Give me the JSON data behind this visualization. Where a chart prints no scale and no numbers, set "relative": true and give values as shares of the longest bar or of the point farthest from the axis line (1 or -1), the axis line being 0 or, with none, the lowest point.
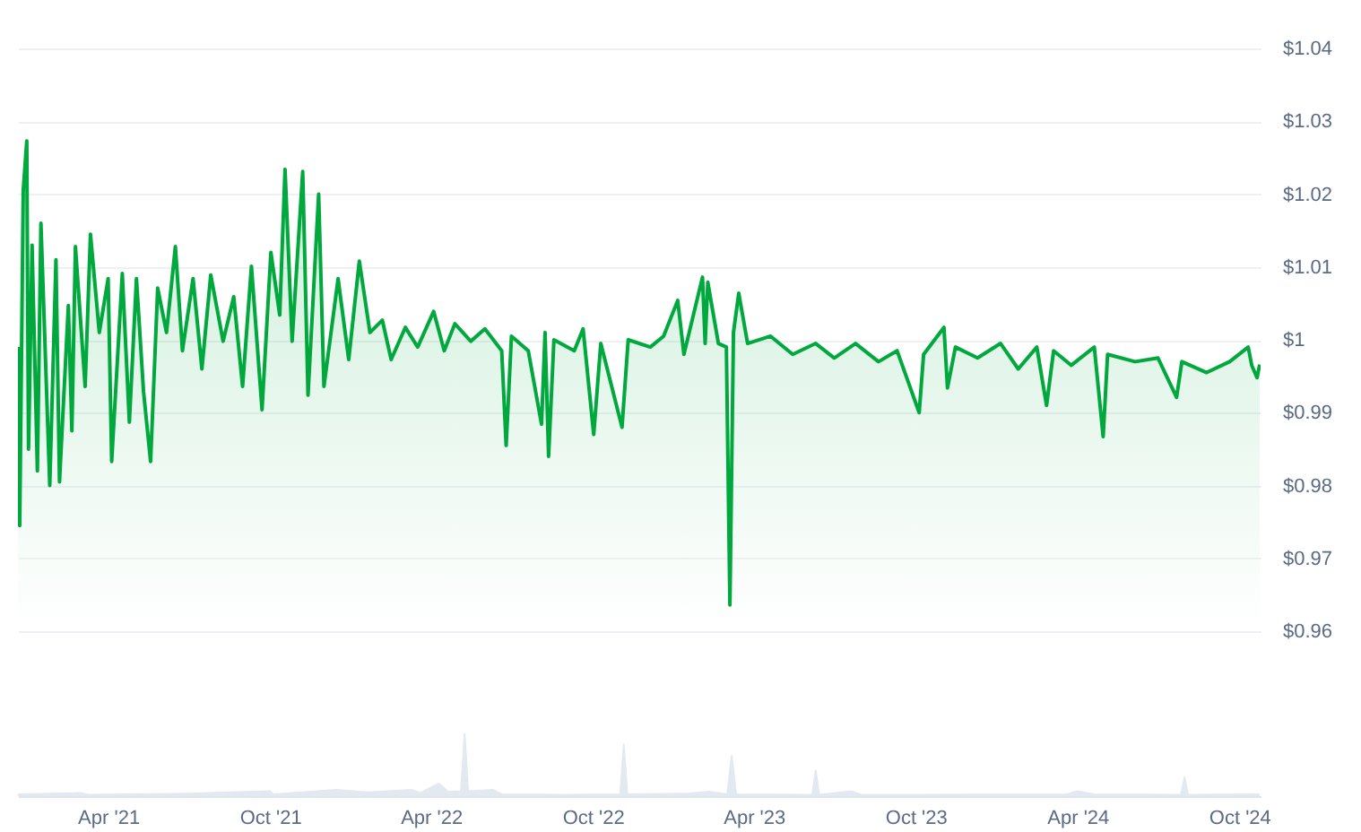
{
  "chart_data": [
    {
      "type": "area",
      "xlim": [
        "2020-12-20",
        "2024-10-25"
      ],
      "ylim": [
        0.96,
        1.04
      ],
      "yticks": [
        {
          "value": 0.96,
          "label": "$0.96"
        },
        {
          "value": 0.97,
          "label": "$0.97"
        },
        {
          "value": 0.98,
          "label": "$0.98"
        },
        {
          "value": 0.99,
          "label": "$0.99"
        },
        {
          "value": 1,
          "label": "$1"
        },
        {
          "value": 1.01,
          "label": "$1.01"
        },
        {
          "value": 1.02,
          "label": "$1.02"
        },
        {
          "value": 1.03,
          "label": "$1.03"
        },
        {
          "value": 1.04,
          "label": "$1.04"
        }
      ],
      "grid": "y",
      "tick_labels": "y",
      "x": [
        "2020-12-20",
        "2020-12-22",
        "2020-12-26",
        "2020-12-30",
        "2021-01-01",
        "2021-01-05",
        "2021-01-11",
        "2021-01-15",
        "2021-01-25",
        "2021-02-01",
        "2021-02-05",
        "2021-02-15",
        "2021-02-19",
        "2021-02-23",
        "2021-03-06",
        "2021-03-12",
        "2021-03-22",
        "2021-04-01",
        "2021-04-05",
        "2021-04-17",
        "2021-04-25",
        "2021-05-03",
        "2021-05-11",
        "2021-05-19",
        "2021-05-27",
        "2021-06-06",
        "2021-06-16",
        "2021-06-24",
        "2021-07-06",
        "2021-07-16",
        "2021-07-26",
        "2021-08-09",
        "2021-08-21",
        "2021-08-31",
        "2021-09-10",
        "2021-09-22",
        "2021-10-02",
        "2021-10-12",
        "2021-10-18",
        "2021-10-26",
        "2021-11-07",
        "2021-11-13",
        "2021-11-25",
        "2021-12-01",
        "2021-12-17",
        "2021-12-29",
        "2022-01-10",
        "2022-01-22",
        "2022-02-05",
        "2022-02-15",
        "2022-03-03",
        "2022-03-17",
        "2022-04-04",
        "2022-04-16",
        "2022-04-28",
        "2022-05-16",
        "2022-06-01",
        "2022-06-20",
        "2022-06-25",
        "2022-07-01",
        "2022-07-20",
        "2022-08-04",
        "2022-08-08",
        "2022-08-12",
        "2022-08-18",
        "2022-09-10",
        "2022-09-20",
        "2022-10-02",
        "2022-10-10",
        "2022-11-03",
        "2022-11-10",
        "2022-12-05",
        "2022-12-20",
        "2023-01-05",
        "2023-01-12",
        "2023-02-02",
        "2023-02-05",
        "2023-02-08",
        "2023-02-20",
        "2023-03-01",
        "2023-03-05",
        "2023-03-09",
        "2023-03-15",
        "2023-03-25",
        "2023-04-20",
        "2023-05-15",
        "2023-06-10",
        "2023-07-01",
        "2023-07-25",
        "2023-08-20",
        "2023-09-10",
        "2023-10-05",
        "2023-10-10",
        "2023-11-02",
        "2023-11-06",
        "2023-11-15",
        "2023-12-10",
        "2024-01-05",
        "2024-01-25",
        "2024-02-15",
        "2024-02-26",
        "2024-03-05",
        "2024-03-25",
        "2024-04-20",
        "2024-04-30",
        "2024-05-05",
        "2024-06-05",
        "2024-07-01",
        "2024-07-22",
        "2024-07-28",
        "2024-08-25",
        "2024-09-20",
        "2024-10-11",
        "2024-10-15",
        "2024-10-21",
        "2024-10-24"
      ],
      "series": [
        {
          "color": "#00a83e",
          "values": [
            0.999,
            0.9745,
            1.0205,
            1.0273,
            0.985,
            1.013,
            0.982,
            1.016,
            0.98,
            1.011,
            0.9805,
            1.0047,
            0.9875,
            1.0128,
            0.9936,
            1.0145,
            1.001,
            1.0084,
            0.9833,
            1.0091,
            0.9887,
            1.0084,
            0.9929,
            0.9833,
            1.0071,
            1.001,
            1.0128,
            0.9985,
            1.0084,
            0.996,
            1.0089,
            0.9998,
            1.0059,
            0.9936,
            1.0101,
            0.9904,
            1.012,
            1.0034,
            1.0234,
            0.9998,
            1.0231,
            0.9924,
            1.02,
            0.9936,
            1.0084,
            0.9973,
            1.0108,
            1.001,
            1.0027,
            0.9973,
            1.0017,
            0.999,
            1.0039,
            0.9985,
            1.0022,
            0.9998,
            1.0015,
            0.9985,
            0.9855,
            1.0005,
            0.9985,
            0.9884,
            1.001,
            0.984,
            1.0,
            0.9985,
            1.0015,
            0.987,
            0.9995,
            0.988,
            1.0,
            0.999,
            1.0005,
            1.0054,
            0.998,
            1.0086,
            0.9995,
            1.0079,
            0.9995,
            0.999,
            0.9636,
            1.001,
            1.0064,
            0.9995,
            1.0005,
            0.998,
            0.9995,
            0.9975,
            0.9995,
            0.997,
            0.9985,
            0.99,
            0.998,
            1.0017,
            0.9934,
            0.999,
            0.9975,
            0.9995,
            0.996,
            0.999,
            0.991,
            0.9985,
            0.9965,
            0.999,
            0.9867,
            0.998,
            0.997,
            0.9975,
            0.9921,
            0.997,
            0.9955,
            0.997,
            0.999,
            0.9965,
            0.9948,
            0.9966
          ]
        }
      ]
    },
    {
      "type": "area",
      "relative": true,
      "xlim": [
        "2020-12-20",
        "2024-10-25"
      ],
      "xticks": [
        {
          "value": "2021-04-01",
          "label": "Apr '21"
        },
        {
          "value": "2021-10-01",
          "label": "Oct '21"
        },
        {
          "value": "2022-04-01",
          "label": "Apr '22"
        },
        {
          "value": "2022-10-01",
          "label": "Oct '22"
        },
        {
          "value": "2023-04-01",
          "label": "Apr '23"
        },
        {
          "value": "2023-10-01",
          "label": "Oct '23"
        },
        {
          "value": "2024-04-01",
          "label": "Apr '24"
        },
        {
          "value": "2024-10-01",
          "label": "Oct '24"
        }
      ],
      "tick_labels": "x",
      "x": [
        "2020-12-20",
        "2021-03-01",
        "2021-03-10",
        "2021-07-01",
        "2021-10-01",
        "2021-10-05",
        "2021-12-15",
        "2022-01-20",
        "2022-03-10",
        "2022-03-20",
        "2022-04-10",
        "2022-04-20",
        "2022-05-05",
        "2022-05-09",
        "2022-05-13",
        "2022-06-10",
        "2022-06-20",
        "2022-09-01",
        "2022-11-01",
        "2022-11-05",
        "2022-11-09",
        "2023-01-15",
        "2023-02-10",
        "2023-03-02",
        "2023-03-07",
        "2023-03-12",
        "2023-06-06",
        "2023-06-10",
        "2023-06-14",
        "2023-07-20",
        "2023-08-01",
        "2024-03-20",
        "2024-04-01",
        "2024-04-20",
        "2024-07-27",
        "2024-07-31",
        "2024-08-04",
        "2024-10-24"
      ],
      "series": [
        {
          "color": "#e3e9f0",
          "values": [
            0.03,
            0.05,
            0.02,
            0.04,
            0.08,
            0.03,
            0.1,
            0.06,
            0.1,
            0.05,
            0.2,
            0.07,
            0.08,
            1,
            0.08,
            0.1,
            0.03,
            0.02,
            0.03,
            0.82,
            0.03,
            0.04,
            0.07,
            0.03,
            0.64,
            0.03,
            0.02,
            0.41,
            0.02,
            0.08,
            0.02,
            0.03,
            0.08,
            0.03,
            0.02,
            0.3,
            0.02,
            0.03
          ]
        }
      ]
    }
  ]
}
